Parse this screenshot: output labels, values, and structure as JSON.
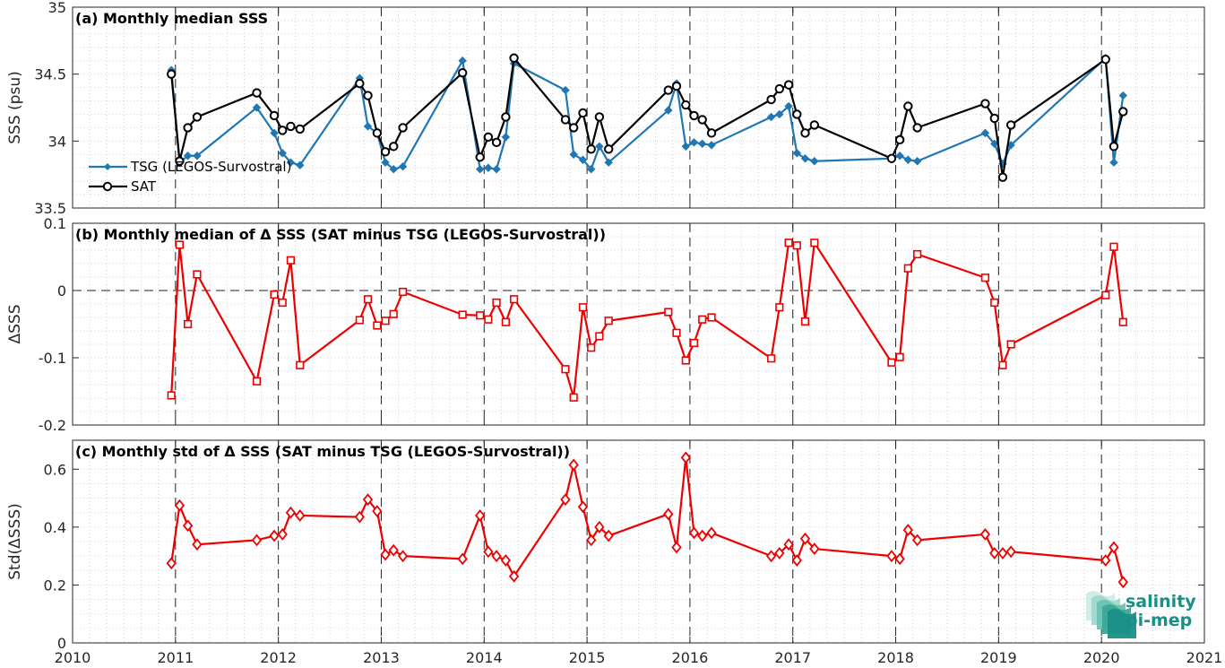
{
  "colors": {
    "tsg": "#1f77b4",
    "sat": "#000000",
    "delta": "#ee0000",
    "grid": "#c8c8c8",
    "axis": "#262626",
    "logo": "#1a8f86"
  },
  "logo": {
    "line1": "salinity",
    "line2": "pi-mep",
    "icon": "salinity-waves-icon"
  },
  "chart_data": [
    {
      "type": "line",
      "title": "(a) Monthly median SSS",
      "ylabel": "SSS (psu)",
      "xlim": [
        2010,
        2021
      ],
      "ylim": [
        33.5,
        35
      ],
      "xticks": [
        "2010",
        "2011",
        "2012",
        "2013",
        "2014",
        "2015",
        "2016",
        "2017",
        "2018",
        "2019",
        "2020",
        "2021"
      ],
      "yticks": [
        "33.5",
        "34",
        "34.5",
        "35"
      ],
      "grid": true,
      "legend_position": "bottom-left",
      "series": [
        {
          "name": "TSG (LEGOS-Survostral)",
          "marker": "diamond-filled",
          "x": [
            2010.96,
            2011.04,
            2011.12,
            2011.21,
            2011.79,
            2011.96,
            2012.04,
            2012.12,
            2012.21,
            2012.79,
            2012.87,
            2012.96,
            2013.04,
            2013.12,
            2013.21,
            2013.79,
            2013.96,
            2014.04,
            2014.12,
            2014.21,
            2014.29,
            2014.79,
            2014.87,
            2014.96,
            2015.04,
            2015.12,
            2015.21,
            2015.79,
            2015.87,
            2015.96,
            2016.04,
            2016.12,
            2016.21,
            2016.79,
            2016.87,
            2016.96,
            2017.04,
            2017.12,
            2017.21,
            2017.96,
            2018.04,
            2018.12,
            2018.21,
            2018.87,
            2018.96,
            2019.04,
            2019.12,
            2020.04,
            2020.12,
            2020.21
          ],
          "values": [
            34.53,
            33.84,
            33.89,
            33.89,
            34.25,
            34.06,
            33.91,
            33.84,
            33.82,
            34.47,
            34.11,
            34.06,
            33.84,
            33.79,
            33.81,
            34.6,
            33.79,
            33.8,
            33.79,
            34.03,
            34.58,
            34.38,
            33.9,
            33.86,
            33.79,
            33.96,
            33.84,
            34.23,
            34.43,
            33.96,
            33.99,
            33.98,
            33.97,
            34.18,
            34.2,
            34.26,
            33.91,
            33.87,
            33.85,
            33.87,
            33.89,
            33.86,
            33.85,
            34.06,
            33.98,
            33.83,
            33.97,
            34.62,
            33.84,
            34.34
          ]
        },
        {
          "name": "SAT",
          "marker": "circle-open",
          "x": [
            2010.96,
            2011.04,
            2011.12,
            2011.21,
            2011.79,
            2011.96,
            2012.04,
            2012.12,
            2012.21,
            2012.79,
            2012.87,
            2012.96,
            2013.04,
            2013.12,
            2013.21,
            2013.79,
            2013.96,
            2014.04,
            2014.12,
            2014.21,
            2014.29,
            2014.79,
            2014.87,
            2014.96,
            2015.04,
            2015.12,
            2015.21,
            2015.79,
            2015.87,
            2015.96,
            2016.04,
            2016.12,
            2016.21,
            2016.79,
            2016.87,
            2016.96,
            2017.04,
            2017.12,
            2017.21,
            2017.96,
            2018.04,
            2018.12,
            2018.21,
            2018.87,
            2018.96,
            2019.04,
            2019.12,
            2020.04,
            2020.12,
            2020.21
          ],
          "values": [
            34.5,
            33.85,
            34.1,
            34.18,
            34.36,
            34.19,
            34.08,
            34.11,
            34.09,
            34.43,
            34.34,
            34.06,
            33.92,
            33.96,
            34.1,
            34.51,
            33.88,
            34.03,
            33.99,
            34.18,
            34.62,
            34.16,
            34.1,
            34.21,
            33.94,
            34.18,
            33.94,
            34.38,
            34.41,
            34.27,
            34.19,
            34.16,
            34.06,
            34.31,
            34.39,
            34.42,
            34.2,
            34.06,
            34.12,
            33.87,
            34.01,
            34.26,
            34.1,
            34.28,
            34.17,
            33.73,
            34.12,
            34.61,
            33.96,
            34.22
          ]
        }
      ]
    },
    {
      "type": "line",
      "title": "(b) Monthly median of Δ SSS (SAT minus TSG (LEGOS-Survostral))",
      "ylabel": "ΔSSS",
      "xlim": [
        2010,
        2021
      ],
      "ylim": [
        -0.2,
        0.1
      ],
      "xticks": [
        "2010",
        "2011",
        "2012",
        "2013",
        "2014",
        "2015",
        "2016",
        "2017",
        "2018",
        "2019",
        "2020",
        "2021"
      ],
      "yticks": [
        "-0.2",
        "-0.1",
        "0",
        "0.1"
      ],
      "grid": true,
      "zero_line": true,
      "series": [
        {
          "marker": "square-open",
          "x": [
            2010.96,
            2011.04,
            2011.12,
            2011.21,
            2011.79,
            2011.96,
            2012.04,
            2012.12,
            2012.21,
            2012.79,
            2012.87,
            2012.96,
            2013.04,
            2013.12,
            2013.21,
            2013.79,
            2013.96,
            2014.04,
            2014.12,
            2014.21,
            2014.29,
            2014.79,
            2014.87,
            2014.96,
            2015.04,
            2015.12,
            2015.21,
            2015.79,
            2015.87,
            2015.96,
            2016.04,
            2016.12,
            2016.21,
            2016.79,
            2016.87,
            2016.96,
            2017.04,
            2017.12,
            2017.21,
            2017.96,
            2018.04,
            2018.12,
            2018.21,
            2018.87,
            2018.96,
            2019.04,
            2019.12,
            2020.04,
            2020.12,
            2020.21
          ],
          "values": [
            -0.156,
            0.068,
            -0.05,
            0.024,
            -0.135,
            -0.006,
            -0.018,
            0.045,
            -0.111,
            -0.044,
            -0.013,
            -0.052,
            -0.045,
            -0.035,
            -0.002,
            -0.036,
            -0.037,
            -0.043,
            -0.018,
            -0.047,
            -0.013,
            -0.117,
            -0.159,
            -0.025,
            -0.085,
            -0.068,
            -0.045,
            -0.032,
            -0.063,
            -0.104,
            -0.078,
            -0.043,
            -0.04,
            -0.101,
            -0.025,
            0.071,
            0.067,
            -0.046,
            0.071,
            -0.107,
            -0.099,
            0.033,
            0.054,
            0.019,
            -0.018,
            -0.111,
            -0.08,
            -0.007,
            0.065,
            -0.047
          ]
        }
      ]
    },
    {
      "type": "line",
      "title": "(c) Monthly std of Δ SSS (SAT minus TSG (LEGOS-Survostral))",
      "ylabel": "Std(ΔSSS)",
      "xlim": [
        2010,
        2021
      ],
      "ylim": [
        0,
        0.7
      ],
      "xticks": [
        "2010",
        "2011",
        "2012",
        "2013",
        "2014",
        "2015",
        "2016",
        "2017",
        "2018",
        "2019",
        "2020",
        "2021"
      ],
      "yticks": [
        "0",
        "0.2",
        "0.4",
        "0.6"
      ],
      "grid": true,
      "series": [
        {
          "marker": "diamond-open",
          "x": [
            2010.96,
            2011.04,
            2011.12,
            2011.21,
            2011.79,
            2011.96,
            2012.04,
            2012.12,
            2012.21,
            2012.79,
            2012.87,
            2012.96,
            2013.04,
            2013.12,
            2013.21,
            2013.79,
            2013.96,
            2014.04,
            2014.12,
            2014.21,
            2014.29,
            2014.79,
            2014.87,
            2014.96,
            2015.04,
            2015.12,
            2015.21,
            2015.79,
            2015.87,
            2015.96,
            2016.04,
            2016.12,
            2016.21,
            2016.79,
            2016.87,
            2016.96,
            2017.04,
            2017.12,
            2017.21,
            2017.96,
            2018.04,
            2018.12,
            2018.21,
            2018.87,
            2018.96,
            2019.04,
            2019.12,
            2020.04,
            2020.12,
            2020.21
          ],
          "values": [
            0.275,
            0.475,
            0.405,
            0.34,
            0.355,
            0.37,
            0.375,
            0.45,
            0.44,
            0.435,
            0.495,
            0.455,
            0.305,
            0.32,
            0.3,
            0.29,
            0.44,
            0.315,
            0.3,
            0.285,
            0.23,
            0.495,
            0.615,
            0.47,
            0.355,
            0.4,
            0.37,
            0.445,
            0.33,
            0.64,
            0.38,
            0.37,
            0.38,
            0.3,
            0.31,
            0.34,
            0.285,
            0.36,
            0.325,
            0.3,
            0.29,
            0.39,
            0.355,
            0.375,
            0.31,
            0.31,
            0.315,
            0.285,
            0.33,
            0.21
          ]
        }
      ]
    }
  ]
}
